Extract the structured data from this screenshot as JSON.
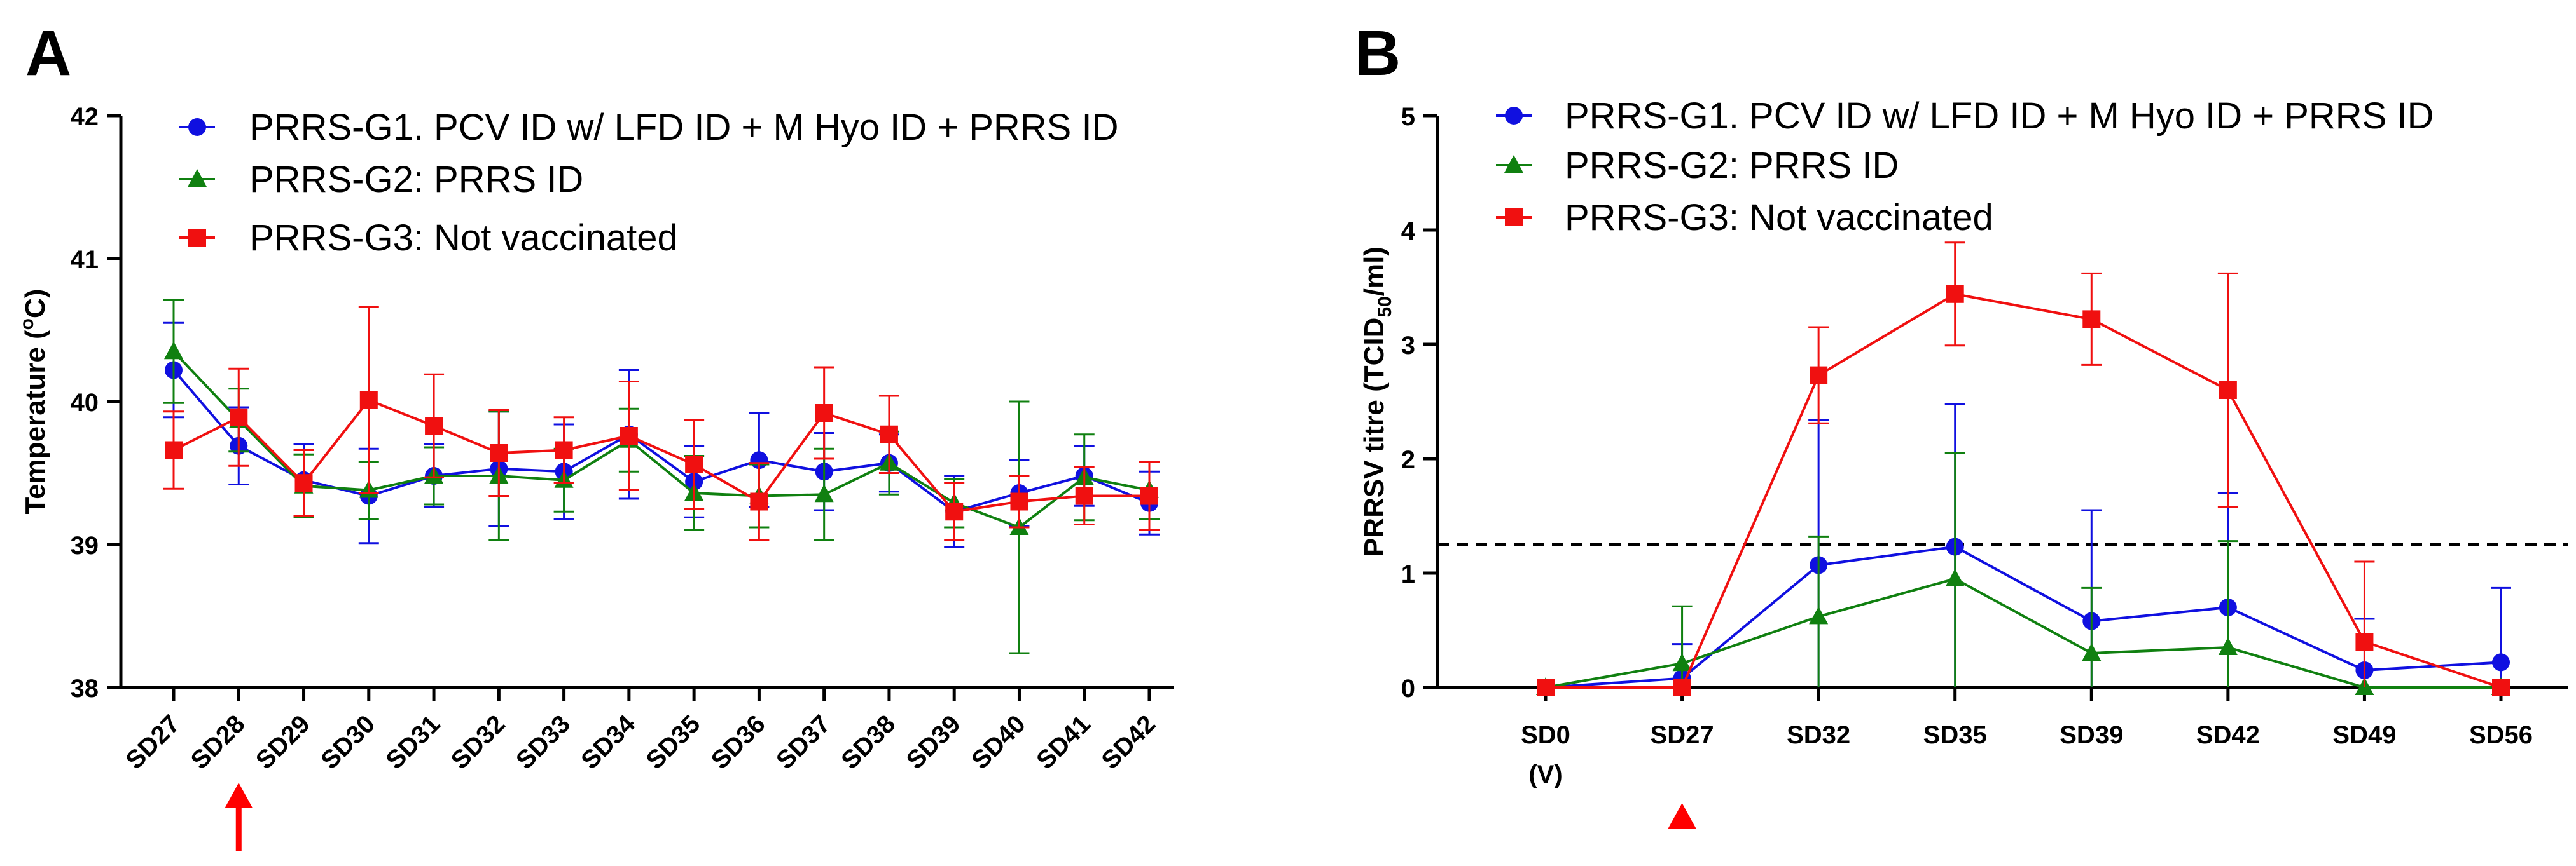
{
  "chart_data": [
    {
      "panel_label": "A",
      "type": "line",
      "ylabel": "Temperature (°C)",
      "ylabel_main": "Temperature (",
      "ylabel_sup": "o",
      "ylabel_end": "C)",
      "ylim": [
        38,
        42
      ],
      "yticks": [
        "38",
        "39",
        "40",
        "41",
        "42"
      ],
      "categories": [
        "SD27",
        "SD28",
        "SD29",
        "SD30",
        "SD31",
        "SD32",
        "SD33",
        "SD34",
        "SD35",
        "SD36",
        "SD37",
        "SD38",
        "SD39",
        "SD40",
        "SD41",
        "SD42"
      ],
      "arrow_at": "SD28",
      "legend": [
        "PRRS-G1. PCV ID w/ LFD ID + M Hyo ID + PRRS ID",
        "PRRS-G2: PRRS ID",
        "PRRS-G3: Not vaccinated"
      ],
      "series": [
        {
          "name": "PRRS-G1. PCV ID w/ LFD ID + M Hyo ID + PRRS ID",
          "color": "#1010e0",
          "marker": "circle",
          "values": [
            40.22,
            39.69,
            39.45,
            39.34,
            39.48,
            39.53,
            39.51,
            39.77,
            39.44,
            39.59,
            39.51,
            39.57,
            39.23,
            39.36,
            39.48,
            39.29
          ],
          "errors": [
            0.33,
            0.27,
            0.25,
            0.33,
            0.22,
            0.4,
            0.33,
            0.45,
            0.25,
            0.33,
            0.27,
            0.2,
            0.25,
            0.23,
            0.21,
            0.22
          ]
        },
        {
          "name": "PRRS-G2: PRRS ID",
          "color": "#108010",
          "marker": "triangle",
          "values": [
            40.35,
            39.87,
            39.41,
            39.38,
            39.48,
            39.48,
            39.45,
            39.73,
            39.36,
            39.34,
            39.35,
            39.57,
            39.29,
            39.12,
            39.47,
            39.38
          ],
          "errors": [
            0.36,
            0.22,
            0.22,
            0.2,
            0.2,
            0.45,
            0.22,
            0.22,
            0.26,
            0.22,
            0.32,
            0.22,
            0.17,
            0.88,
            0.3,
            0.2
          ]
        },
        {
          "name": "PRRS-G3: Not vaccinated",
          "color": "#f01010",
          "marker": "square",
          "values": [
            39.66,
            39.89,
            39.43,
            40.01,
            39.83,
            39.64,
            39.66,
            39.76,
            39.56,
            39.3,
            39.92,
            39.77,
            39.23,
            39.3,
            39.34,
            39.34
          ],
          "errors": [
            0.27,
            0.34,
            0.23,
            0.65,
            0.36,
            0.3,
            0.23,
            0.38,
            0.31,
            0.27,
            0.32,
            0.27,
            0.2,
            0.18,
            0.2,
            0.24
          ]
        }
      ]
    },
    {
      "panel_label": "B",
      "type": "line",
      "ylabel": "PRRSV titre (TCID50/ml)",
      "ylabel_main": "PRRSV titre (TCID",
      "ylabel_sub": "50",
      "ylabel_end": "/ml)",
      "ylim": [
        0,
        5
      ],
      "yticks": [
        "0",
        "1",
        "2",
        "3",
        "4",
        "5"
      ],
      "categories": [
        "SD0",
        "SD27",
        "SD32",
        "SD35",
        "SD39",
        "SD42",
        "SD49",
        "SD56"
      ],
      "category_sublabels": [
        "(V)",
        "",
        "",
        "",
        "",
        "",
        "",
        ""
      ],
      "arrow_at": "SD27",
      "threshold": 1.25,
      "legend": [
        "PRRS-G1. PCV ID w/ LFD ID + M Hyo ID + PRRS ID",
        "PRRS-G2: PRRS ID",
        "PRRS-G3: Not vaccinated"
      ],
      "series": [
        {
          "name": "PRRS-G1. PCV ID w/ LFD ID + M Hyo ID + PRRS ID",
          "color": "#1010e0",
          "marker": "circle",
          "values": [
            0,
            0.08,
            1.07,
            1.23,
            0.58,
            0.7,
            0.15,
            0.22
          ],
          "errors": [
            0,
            0.3,
            1.27,
            1.25,
            0.97,
            1.0,
            0.45,
            0.65
          ]
        },
        {
          "name": "PRRS-G2: PRRS ID",
          "color": "#108010",
          "marker": "triangle",
          "values": [
            0,
            0.21,
            0.62,
            0.95,
            0.3,
            0.35,
            0,
            0
          ],
          "errors": [
            0,
            0.5,
            0.7,
            1.1,
            0.57,
            0.93,
            0,
            0
          ]
        },
        {
          "name": "PRRS-G3: Not vaccinated",
          "color": "#f01010",
          "marker": "square",
          "values": [
            0,
            0,
            2.73,
            3.44,
            3.22,
            2.6,
            0.4,
            0
          ],
          "errors": [
            0,
            0,
            0.42,
            0.45,
            0.4,
            1.02,
            0.7,
            0
          ]
        }
      ]
    }
  ]
}
